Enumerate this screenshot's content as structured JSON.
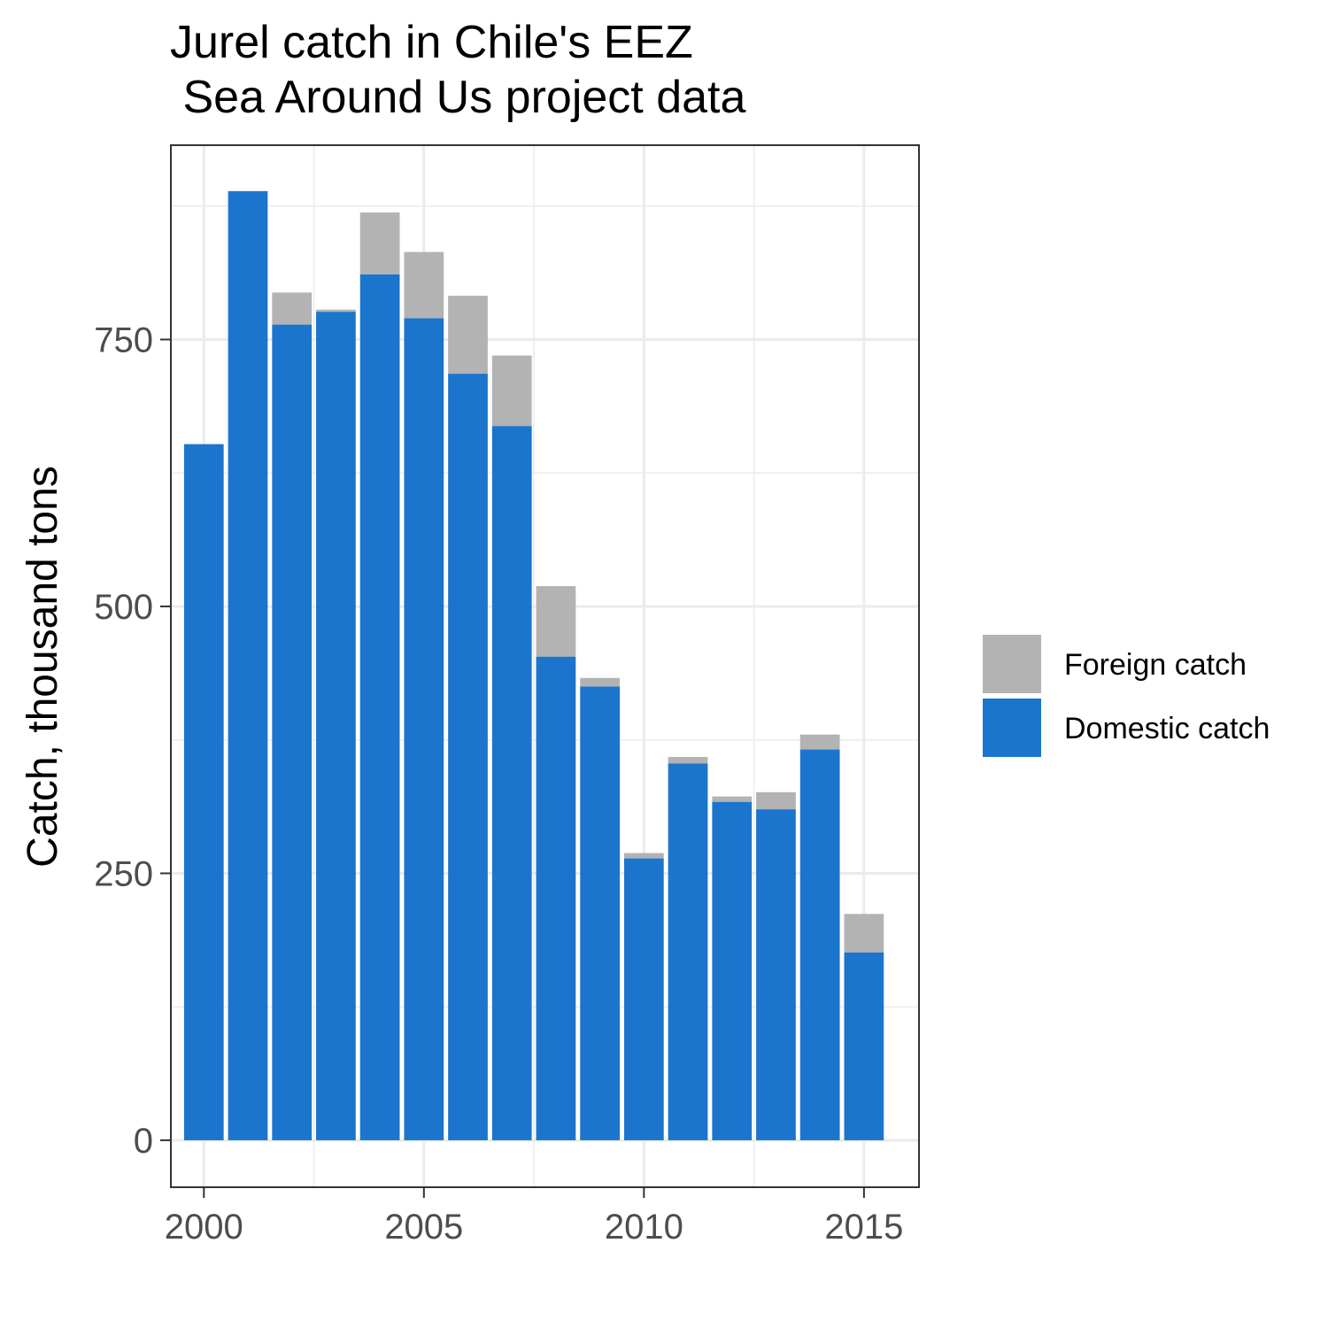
{
  "chart_data": {
    "type": "bar",
    "stacked": true,
    "title_lines": [
      "Jurel catch in Chile's EEZ",
      " Sea Around Us project data"
    ],
    "xlabel": "",
    "ylabel": "Catch, thousand tons",
    "x": [
      2000,
      2001,
      2002,
      2003,
      2004,
      2005,
      2006,
      2007,
      2008,
      2009,
      2010,
      2011,
      2012,
      2013,
      2014,
      2015
    ],
    "series": [
      {
        "name": "Domestic catch",
        "color": "#1b75cd",
        "values": [
          652,
          889,
          764,
          776,
          811,
          770,
          718,
          669,
          453,
          425,
          264,
          353,
          317,
          310,
          366,
          176
        ]
      },
      {
        "name": "Foreign catch",
        "color": "#b3b3b3",
        "values": [
          0,
          0,
          30,
          2,
          58,
          62,
          73,
          66,
          66,
          8,
          5,
          6,
          5,
          16,
          14,
          36
        ]
      }
    ],
    "x_ticks": [
      2000,
      2005,
      2010,
      2015
    ],
    "y_ticks": [
      0,
      250,
      500,
      750
    ],
    "xlim": [
      1999.25,
      2016.25
    ],
    "ylim": [
      -44,
      932
    ],
    "grid": true,
    "legend": {
      "placement": "right",
      "entries": [
        "Foreign catch",
        "Domestic catch"
      ]
    }
  }
}
